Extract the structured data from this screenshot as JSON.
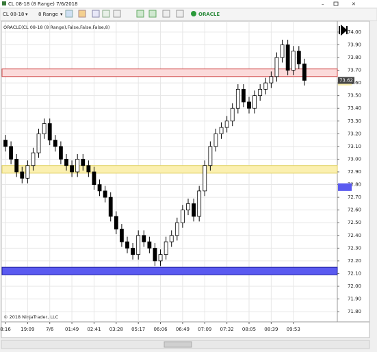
{
  "window": {
    "title": "CL 08-18 (8 Range)  7/6/2018"
  },
  "toolbar": {
    "instrument": "CL 08-18",
    "interval": "8 Range",
    "strategy": "ORACLE"
  },
  "chart_data": {
    "type": "candlestick",
    "indicator_label": "ORACLE(CL 08-18 (8 Range),False,False,False,8)",
    "copyright": "© 2018 NinjaTrader, LLC",
    "categories": [
      "8:16",
      null,
      null,
      null,
      "19:09",
      null,
      null,
      null,
      "7/6",
      null,
      null,
      null,
      "01:49",
      null,
      null,
      null,
      "02:41",
      null,
      null,
      null,
      "03:28",
      null,
      null,
      null,
      "05:17",
      null,
      null,
      null,
      "06:06",
      null,
      null,
      null,
      "06:49",
      null,
      null,
      null,
      "07:09",
      null,
      null,
      null,
      "07:32",
      null,
      null,
      null,
      "08:05",
      null,
      null,
      null,
      "08:39",
      null,
      null,
      null,
      "09:53",
      null,
      null
    ],
    "open": [
      73.15,
      73.1,
      73.0,
      72.9,
      72.85,
      72.95,
      73.05,
      73.2,
      73.28,
      73.15,
      73.1,
      73.0,
      72.95,
      72.9,
      73.0,
      72.95,
      72.9,
      72.8,
      72.75,
      72.7,
      72.55,
      72.45,
      72.35,
      72.3,
      72.25,
      72.4,
      72.35,
      72.3,
      72.2,
      72.25,
      72.35,
      72.4,
      72.5,
      72.6,
      72.65,
      72.55,
      72.75,
      72.95,
      73.1,
      73.2,
      73.25,
      73.3,
      73.4,
      73.55,
      73.45,
      73.4,
      73.5,
      73.55,
      73.6,
      73.65,
      73.8,
      73.9,
      73.7,
      73.85,
      73.75
    ],
    "high": [
      73.19,
      73.14,
      73.04,
      72.94,
      72.99,
      73.09,
      73.24,
      73.32,
      73.32,
      73.19,
      73.14,
      73.04,
      72.99,
      73.04,
      73.04,
      72.99,
      72.94,
      72.84,
      72.79,
      72.74,
      72.59,
      72.49,
      72.39,
      72.34,
      72.44,
      72.44,
      72.39,
      72.34,
      72.29,
      72.39,
      72.44,
      72.54,
      72.64,
      72.69,
      72.69,
      72.79,
      72.99,
      73.14,
      73.24,
      73.29,
      73.34,
      73.44,
      73.59,
      73.59,
      73.49,
      73.54,
      73.59,
      73.64,
      73.69,
      73.84,
      73.94,
      73.94,
      73.89,
      73.89,
      73.79
    ],
    "low": [
      73.06,
      72.96,
      72.86,
      72.81,
      72.81,
      72.91,
      73.01,
      73.16,
      73.11,
      73.06,
      72.96,
      72.91,
      72.86,
      72.86,
      72.91,
      72.86,
      72.76,
      72.71,
      72.66,
      72.51,
      72.41,
      72.31,
      72.26,
      72.21,
      72.21,
      72.31,
      72.26,
      72.16,
      72.16,
      72.21,
      72.31,
      72.36,
      72.46,
      72.56,
      72.51,
      72.51,
      72.71,
      72.91,
      73.06,
      73.16,
      73.21,
      73.26,
      73.36,
      73.41,
      73.36,
      73.36,
      73.46,
      73.51,
      73.56,
      73.61,
      73.76,
      73.66,
      73.66,
      73.71,
      73.58
    ],
    "close": [
      73.1,
      73.0,
      72.9,
      72.85,
      72.95,
      73.05,
      73.2,
      73.28,
      73.15,
      73.1,
      73.0,
      72.95,
      72.9,
      73.0,
      72.95,
      72.9,
      72.8,
      72.75,
      72.7,
      72.55,
      72.45,
      72.35,
      72.3,
      72.25,
      72.4,
      72.35,
      72.3,
      72.2,
      72.25,
      72.35,
      72.4,
      72.5,
      72.6,
      72.65,
      72.55,
      72.75,
      72.95,
      73.1,
      73.2,
      73.25,
      73.3,
      73.4,
      73.55,
      73.45,
      73.4,
      73.5,
      73.55,
      73.6,
      73.65,
      73.8,
      73.9,
      73.7,
      73.85,
      73.75,
      73.62
    ],
    "up_color": "#ffffff",
    "down_color": "#000000",
    "outline_color": "#000000",
    "ylim": [
      71.72,
      74.08
    ],
    "yticks": [
      {
        "value": 71.8,
        "label": "71.80"
      },
      {
        "value": 71.9,
        "label": "71.90"
      },
      {
        "value": 72,
        "label": "72.00"
      },
      {
        "value": 72.1,
        "label": "72.10"
      },
      {
        "value": 72.2,
        "label": "72.20"
      },
      {
        "value": 72.3,
        "label": "72.30"
      },
      {
        "value": 72.4,
        "label": "72.40"
      },
      {
        "value": 72.5,
        "label": "72.50"
      },
      {
        "value": 72.6,
        "label": "72.60"
      },
      {
        "value": 72.7,
        "label": "72.70"
      },
      {
        "value": 72.8,
        "label": "72.80"
      },
      {
        "value": 72.9,
        "label": "72.90"
      },
      {
        "value": 73,
        "label": "73.00"
      },
      {
        "value": 73.1,
        "label": "73.10"
      },
      {
        "value": 73.2,
        "label": "73.20"
      },
      {
        "value": 73.3,
        "label": "73.30"
      },
      {
        "value": 73.4,
        "label": "73.40"
      },
      {
        "value": 73.5,
        "label": "73.50"
      },
      {
        "value": 73.6,
        "label": "73.60"
      },
      {
        "value": 73.7,
        "label": "73.70"
      },
      {
        "value": 73.8,
        "label": "73.80"
      },
      {
        "value": 73.9,
        "label": "73.90"
      },
      {
        "value": 74,
        "label": "74.00"
      }
    ],
    "grid": true,
    "last_price": {
      "value": 73.62,
      "label": "73.62"
    },
    "zones": [
      {
        "low": 73.65,
        "high": 73.71,
        "color": "#fbdada",
        "stroke": "#d04848"
      },
      {
        "low": 72.89,
        "high": 72.95,
        "color": "#fbf0b0",
        "stroke": "#e0cf60"
      },
      {
        "low": 72.09,
        "high": 72.15,
        "color": "#5a5af0",
        "stroke": "#2020a0"
      }
    ],
    "axis_zones": [
      {
        "low": 73.58,
        "high": 73.64,
        "color": "#fbf0b0"
      },
      {
        "low": 72.75,
        "high": 72.81,
        "color": "#5a5af0"
      }
    ]
  }
}
